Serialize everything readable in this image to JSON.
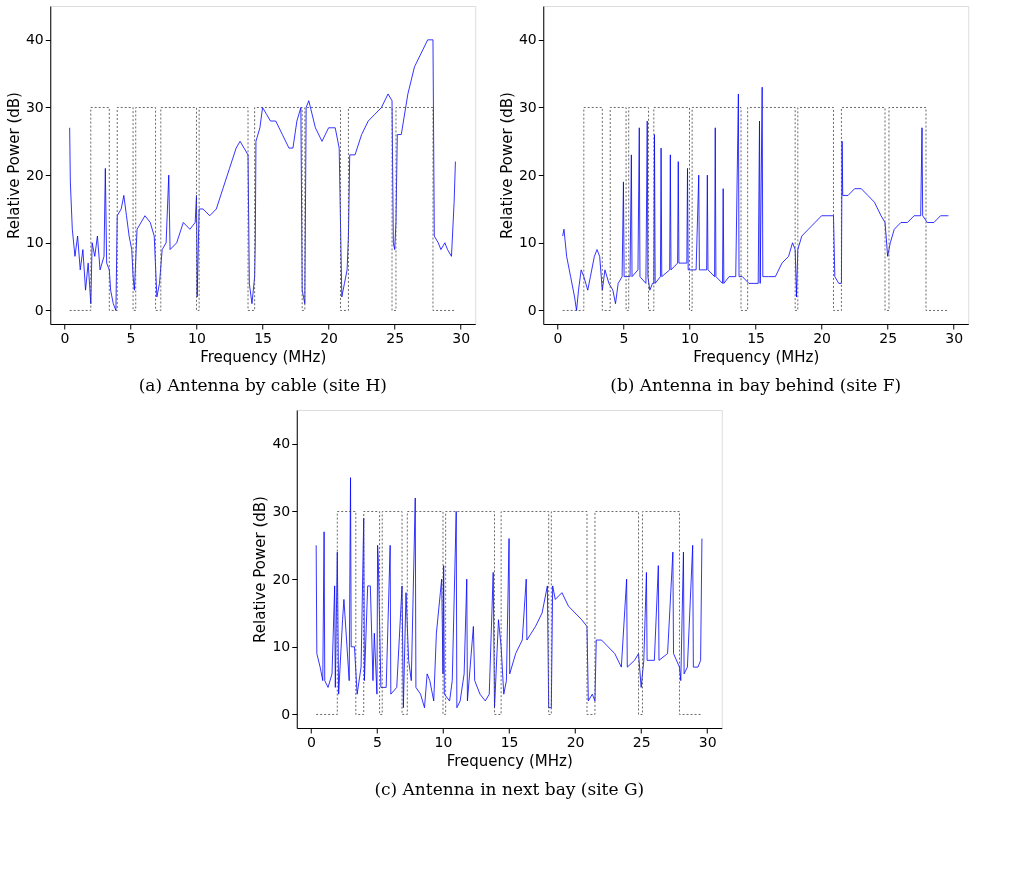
{
  "chart_data": [
    {
      "type": "line",
      "title": "(a) Antenna by cable (site H)",
      "xlabel": "Frequency (MHz)",
      "ylabel": "Relative Power (dB)",
      "xlim": [
        -1.07,
        31.1
      ],
      "ylim": [
        -2,
        45
      ],
      "xticks": [
        0,
        5,
        10,
        15,
        20,
        25,
        30
      ],
      "yticks": [
        0,
        10,
        20,
        30,
        40
      ],
      "grid": false,
      "legend": false,
      "series": [
        {
          "color": "#0000ff",
          "x": [
            0.4,
            0.45,
            0.6,
            0.8,
            1.0,
            1.2,
            1.4,
            1.6,
            1.8,
            2.0,
            2.1,
            2.3,
            2.5,
            2.7,
            3.0,
            3.1,
            3.2,
            3.4,
            3.5,
            3.7,
            3.9,
            4.0,
            4.3,
            4.5,
            4.7,
            4.9,
            5.1,
            5.2,
            5.3,
            5.5,
            5.8,
            6.1,
            6.5,
            6.8,
            7.0,
            7.2,
            7.4,
            7.7,
            7.9,
            8.0,
            8.5,
            9.0,
            9.5,
            9.9,
            10.0,
            10.05,
            10.2,
            10.5,
            11.0,
            11.5,
            12.0,
            12.5,
            13.0,
            13.3,
            13.6,
            13.9,
            14.0,
            14.2,
            14.4,
            14.45,
            14.5,
            14.8,
            15.0,
            15.3,
            15.6,
            16.0,
            16.5,
            17.0,
            17.3,
            17.6,
            17.9,
            18.0,
            18.2,
            18.3,
            18.5,
            19.0,
            19.5,
            20.0,
            20.5,
            20.8,
            21.0,
            21.2,
            21.4,
            21.5,
            21.6,
            22.0,
            22.5,
            23.0,
            23.5,
            24.0,
            24.5,
            24.8,
            24.9,
            25.0,
            25.1,
            25.2,
            25.5,
            26.0,
            26.5,
            27.0,
            27.5,
            27.9,
            28.0,
            28.3,
            28.5,
            28.8,
            29.0,
            29.3,
            29.5,
            29.6
          ],
          "values": [
            27,
            19,
            12,
            8,
            11,
            6,
            9,
            3,
            7,
            1,
            10,
            8,
            11,
            6,
            8,
            21,
            7,
            6,
            3,
            1,
            0,
            14,
            15,
            17,
            14,
            11,
            9,
            5,
            3,
            12,
            13,
            14,
            13,
            11,
            2,
            4,
            9,
            10,
            20,
            9,
            10,
            13,
            12,
            13,
            17,
            2,
            15,
            15,
            14,
            15,
            18,
            21,
            24,
            25,
            24,
            23,
            4,
            1,
            5,
            10,
            25,
            27,
            30,
            29,
            28,
            28,
            26,
            24,
            24,
            28,
            30,
            3,
            1,
            30,
            31,
            27,
            25,
            27,
            27,
            24,
            2,
            4,
            6,
            11,
            23,
            23,
            26,
            28,
            29,
            30,
            32,
            31,
            10,
            9,
            13,
            26,
            26,
            32,
            36,
            38,
            40,
            40,
            11,
            10,
            9,
            10,
            9,
            8,
            16,
            22
          ]
        },
        {
          "type": "step",
          "color": "#444444",
          "line_style": "dotted",
          "x": [
            0.4,
            2.0,
            3.4,
            4.0,
            5.2,
            5.4,
            6.9,
            7.3,
            10.0,
            10.2,
            13.9,
            14.4,
            18.0,
            18.2,
            20.9,
            21.5,
            24.8,
            25.1,
            27.9,
            29.6
          ],
          "values": [
            0,
            30,
            0,
            30,
            0,
            30,
            0,
            30,
            0,
            30,
            0,
            30,
            0,
            30,
            0,
            30,
            0,
            30,
            0,
            0
          ]
        }
      ]
    },
    {
      "type": "line",
      "title": "(b) Antenna in bay behind (site F)",
      "xlabel": "Frequency (MHz)",
      "ylabel": "Relative Power (dB)",
      "xlim": [
        -1.07,
        31.1
      ],
      "ylim": [
        -2,
        45
      ],
      "xticks": [
        0,
        5,
        10,
        15,
        20,
        25,
        30
      ],
      "yticks": [
        0,
        10,
        20,
        30,
        40
      ],
      "grid": false,
      "legend": false,
      "series": [
        {
          "color": "#0000ff",
          "x": [
            0.4,
            0.5,
            0.7,
            1.0,
            1.3,
            1.45,
            1.6,
            1.8,
            2.0,
            2.3,
            2.5,
            2.8,
            3.0,
            3.2,
            3.4,
            3.6,
            3.9,
            4.2,
            4.4,
            4.6,
            4.9,
            5.0,
            5.05,
            5.5,
            5.6,
            5.65,
            6.1,
            6.2,
            6.25,
            6.7,
            6.8,
            6.85,
            7.0,
            7.2,
            7.3,
            7.35,
            7.4,
            7.8,
            7.85,
            7.9,
            8.5,
            8.55,
            8.6,
            9.1,
            9.15,
            9.2,
            9.8,
            9.85,
            9.9,
            10.5,
            10.7,
            10.75,
            11.3,
            11.35,
            11.4,
            11.9,
            11.95,
            12.0,
            12.5,
            12.55,
            12.6,
            13.0,
            13.5,
            13.7,
            13.75,
            14.0,
            14.5,
            15.2,
            15.3,
            15.35,
            15.5,
            15.55,
            16.0,
            16.5,
            17.0,
            17.5,
            17.8,
            18.0,
            18.1,
            18.2,
            18.5,
            19.0,
            19.5,
            20.0,
            20.5,
            20.9,
            21.0,
            21.3,
            21.5,
            21.55,
            21.6,
            22.0,
            22.5,
            23.0,
            23.5,
            24.0,
            24.5,
            24.8,
            25.0,
            25.2,
            25.5,
            26.0,
            26.5,
            27.0,
            27.5,
            27.6,
            27.65,
            28.0,
            28.5,
            29.0,
            29.5,
            29.6
          ],
          "values": [
            11,
            12,
            8,
            5,
            2,
            0,
            3,
            6,
            5,
            3,
            5,
            8,
            9,
            8,
            3,
            6,
            4,
            3,
            1,
            4,
            5,
            19,
            5,
            5,
            23,
            5,
            6,
            27,
            5,
            4,
            28,
            5,
            3,
            4,
            4,
            26,
            4,
            5,
            24,
            5,
            6,
            23,
            6,
            7,
            22,
            7,
            7,
            21,
            6,
            6,
            20,
            6,
            6,
            20,
            6,
            5,
            27,
            5,
            4,
            18,
            4,
            5,
            5,
            32,
            5,
            5,
            4,
            4,
            28,
            4,
            33,
            5,
            5,
            5,
            7,
            8,
            10,
            9,
            2,
            9,
            11,
            12,
            13,
            14,
            14,
            14,
            5,
            4,
            4,
            25,
            17,
            17,
            18,
            18,
            17,
            16,
            14,
            13,
            8,
            10,
            12,
            13,
            13,
            14,
            14,
            27,
            14,
            13,
            13,
            14,
            14,
            14
          ]
        },
        {
          "type": "step",
          "color": "#444444",
          "line_style": "dotted",
          "x": [
            0.4,
            2.0,
            3.4,
            4.0,
            5.2,
            5.4,
            6.9,
            7.3,
            10.0,
            10.2,
            13.9,
            14.4,
            18.0,
            18.2,
            20.9,
            21.5,
            24.8,
            25.1,
            27.9,
            29.6
          ],
          "values": [
            0,
            30,
            0,
            30,
            0,
            30,
            0,
            30,
            0,
            30,
            0,
            30,
            0,
            30,
            0,
            30,
            0,
            30,
            0,
            0
          ]
        }
      ]
    },
    {
      "type": "line",
      "title": "(c) Antenna in next bay (site G)",
      "xlabel": "Frequency (MHz)",
      "ylabel": "Relative Power (dB)",
      "xlim": [
        -1.07,
        31.1
      ],
      "ylim": [
        -2,
        45
      ],
      "xticks": [
        0,
        5,
        10,
        15,
        20,
        25,
        30
      ],
      "yticks": [
        0,
        10,
        20,
        30,
        40
      ],
      "grid": false,
      "legend": false,
      "series": [
        {
          "color": "#0000ff",
          "x": [
            0.4,
            0.45,
            0.7,
            0.9,
            1.0,
            1.05,
            1.3,
            1.6,
            1.8,
            1.85,
            2.0,
            2.1,
            2.4,
            2.5,
            2.7,
            2.9,
            3.0,
            3.05,
            3.3,
            3.5,
            3.8,
            4.0,
            4.05,
            4.3,
            4.5,
            4.7,
            4.8,
            5.0,
            5.05,
            5.1,
            5.3,
            5.7,
            6.0,
            6.05,
            6.5,
            6.9,
            7.0,
            7.2,
            7.4,
            7.6,
            7.9,
            7.95,
            8.3,
            8.6,
            8.8,
            9.0,
            9.3,
            9.5,
            9.8,
            9.9,
            10.0,
            10.05,
            10.1,
            10.5,
            10.7,
            11.0,
            11.05,
            11.3,
            11.6,
            11.8,
            11.85,
            12.3,
            12.4,
            12.8,
            13.2,
            13.5,
            13.8,
            13.9,
            14.2,
            14.4,
            14.6,
            14.8,
            15.0,
            15.05,
            15.5,
            16.0,
            16.3,
            16.35,
            17.0,
            17.5,
            17.9,
            18.0,
            18.2,
            18.3,
            18.5,
            19.0,
            19.5,
            20.0,
            20.5,
            20.9,
            21.0,
            21.3,
            21.5,
            21.6,
            22.0,
            22.5,
            23.0,
            23.5,
            23.9,
            23.95,
            24.5,
            24.8,
            25.0,
            25.2,
            25.4,
            25.45,
            26.0,
            26.3,
            26.35,
            27.0,
            27.4,
            27.45,
            27.9,
            28.0,
            28.2,
            28.25,
            28.5,
            28.9,
            28.95,
            29.3,
            29.5,
            29.6
          ],
          "values": [
            25,
            9,
            7,
            5,
            27,
            5,
            4,
            6,
            19,
            4,
            24,
            3,
            14,
            17,
            11,
            5,
            35,
            10,
            10,
            3,
            7,
            29,
            5,
            19,
            19,
            5,
            12,
            3,
            25,
            23,
            4,
            4,
            25,
            3,
            4,
            19,
            1,
            18,
            8,
            5,
            32,
            4,
            3,
            1,
            6,
            5,
            2,
            12,
            18,
            20,
            6,
            22,
            3,
            2,
            5,
            30,
            1,
            2,
            6,
            20,
            2,
            13,
            5,
            3,
            2,
            3,
            21,
            1,
            14,
            10,
            3,
            5,
            26,
            6,
            9,
            11,
            20,
            11,
            13,
            15,
            19,
            1,
            1,
            19,
            17,
            18,
            16,
            15,
            14,
            13,
            2,
            3,
            2,
            11,
            11,
            10,
            9,
            7,
            20,
            7,
            8,
            9,
            4,
            8,
            21,
            8,
            8,
            22,
            8,
            9,
            24,
            9,
            7,
            5,
            24,
            6,
            7,
            25,
            7,
            7,
            8,
            26
          ]
        },
        {
          "type": "step",
          "color": "#444444",
          "line_style": "dotted",
          "x": [
            0.4,
            2.0,
            3.4,
            4.0,
            5.2,
            5.4,
            6.9,
            7.3,
            10.0,
            10.2,
            13.9,
            14.4,
            18.0,
            18.2,
            20.9,
            21.5,
            24.8,
            25.1,
            27.9,
            29.6
          ],
          "values": [
            0,
            30,
            0,
            30,
            0,
            30,
            0,
            30,
            0,
            30,
            0,
            30,
            0,
            30,
            0,
            30,
            0,
            30,
            0,
            0
          ]
        }
      ]
    }
  ]
}
